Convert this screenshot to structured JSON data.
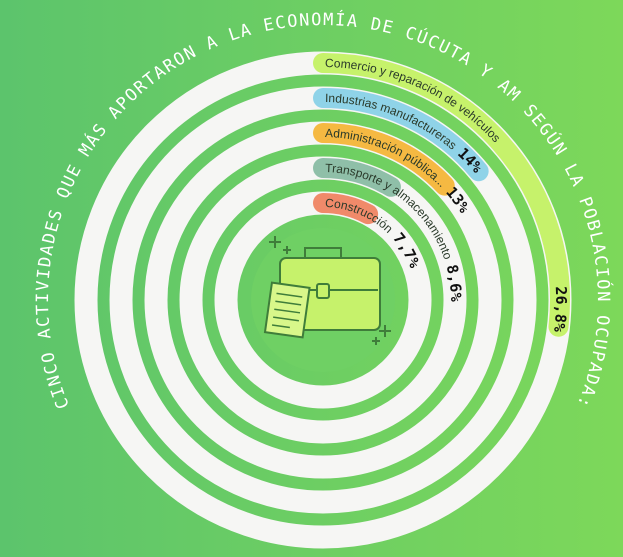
{
  "chart_data": {
    "type": "radial_bar",
    "title": "CINCO ACTIVIDADES QUE MÁS APORTARON A LA ECONOMÍA DE CÚCUTA Y AM SEGÚN LA POBLACIÓN OCUPADA:",
    "categories": [
      "Comercio y reparación de vehículos",
      "Industrias manufactureras",
      "Administración pública...",
      "Transporte y almacenamiento",
      "Construcción"
    ],
    "values": [
      26.8,
      14,
      13,
      8.6,
      7.7
    ],
    "value_labels": [
      "26,8%",
      "14%",
      "13%",
      "8,6%",
      "7,7%"
    ],
    "colors": [
      "#c6f26b",
      "#8fd3e8",
      "#f5b942",
      "#8fbfa8",
      "#f08a6a"
    ]
  }
}
